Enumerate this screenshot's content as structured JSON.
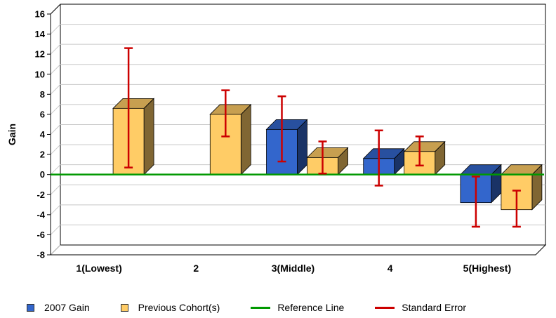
{
  "colors": {
    "gain2007": "#3366cc",
    "previous": "#ffcc66",
    "reference": "#009900",
    "error": "#cc0000"
  },
  "legend": {
    "gain2007": "2007 Gain",
    "previous": "Previous Cohort(s)",
    "reference": "Reference Line",
    "error": "Standard Error"
  },
  "chart_data": {
    "type": "bar",
    "ylabel": "Gain",
    "xlabel": "",
    "ylim": [
      -8,
      16
    ],
    "yticks": [
      16,
      14,
      12,
      10,
      8,
      6,
      4,
      2,
      0,
      -2,
      -4,
      -6,
      -8
    ],
    "categories": [
      "1(Lowest)",
      "2",
      "3(Middle)",
      "4",
      "5(Highest)"
    ],
    "reference_value": 0,
    "series": [
      {
        "name": "2007 Gain",
        "values": [
          null,
          null,
          4.5,
          1.6,
          -2.8
        ],
        "error_low": [
          null,
          null,
          1.3,
          -1.1,
          -5.2
        ],
        "error_high": [
          null,
          null,
          7.8,
          4.4,
          -0.2
        ]
      },
      {
        "name": "Previous Cohort(s)",
        "values": [
          6.6,
          6.0,
          1.7,
          2.3,
          -3.5
        ],
        "error_low": [
          0.7,
          3.8,
          0.1,
          0.9,
          -5.2
        ],
        "error_high": [
          12.6,
          8.4,
          3.3,
          3.8,
          -1.6
        ]
      }
    ],
    "grid": true,
    "legend_position": "bottom"
  }
}
